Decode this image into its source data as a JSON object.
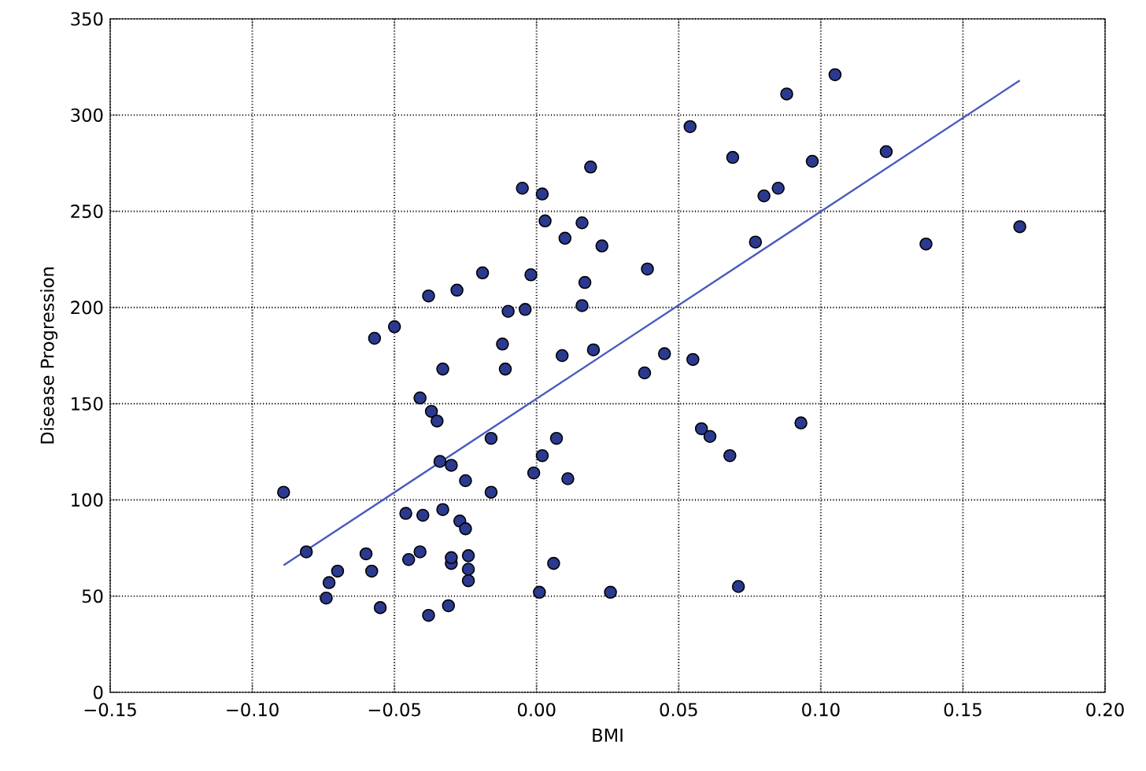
{
  "chart_data": {
    "type": "scatter",
    "xlabel": "BMI",
    "ylabel": "Disease Progression",
    "xlim": [
      -0.15,
      0.2
    ],
    "ylim": [
      0,
      350
    ],
    "xticks": [
      {
        "value": -0.15,
        "label": "−0.15"
      },
      {
        "value": -0.1,
        "label": "−0.10"
      },
      {
        "value": -0.05,
        "label": "−0.05"
      },
      {
        "value": 0,
        "label": "0.00"
      },
      {
        "value": 0.05,
        "label": "0.05"
      },
      {
        "value": 0.1,
        "label": "0.10"
      },
      {
        "value": 0.15,
        "label": "0.15"
      },
      {
        "value": 0.2,
        "label": "0.20"
      }
    ],
    "yticks": [
      0,
      50,
      100,
      150,
      200,
      250,
      300,
      350
    ],
    "grid": true,
    "series": [
      {
        "marker": "circle",
        "color": "#2b3a8f",
        "x": [
          -0.089,
          -0.081,
          -0.074,
          -0.073,
          -0.07,
          -0.06,
          -0.058,
          -0.057,
          -0.055,
          -0.05,
          -0.045,
          -0.046,
          -0.041,
          -0.04,
          -0.041,
          -0.038,
          -0.038,
          -0.037,
          -0.035,
          -0.033,
          -0.034,
          -0.033,
          -0.031,
          -0.03,
          -0.03,
          -0.03,
          -0.028,
          -0.027,
          -0.025,
          -0.025,
          -0.024,
          -0.024,
          -0.024,
          -0.019,
          -0.016,
          -0.016,
          -0.012,
          -0.011,
          -0.01,
          -0.004,
          -0.005,
          -0.002,
          -0.001,
          0.002,
          0.001,
          0.003,
          0.002,
          0.006,
          0.007,
          0.009,
          0.01,
          0.011,
          0.016,
          0.016,
          0.017,
          0.019,
          0.02,
          0.023,
          0.026,
          0.038,
          0.039,
          0.045,
          0.054,
          0.055,
          0.058,
          0.061,
          0.068,
          0.069,
          0.071,
          0.077,
          0.08,
          0.085,
          0.088,
          0.093,
          0.097,
          0.105,
          0.123,
          0.137,
          0.17
        ],
        "values": [
          104,
          73,
          49,
          57,
          63,
          72,
          63,
          184,
          44,
          190,
          69,
          93,
          73,
          92,
          153,
          206,
          40,
          146,
          141,
          168,
          120,
          95,
          45,
          67,
          70,
          118,
          209,
          89,
          85,
          110,
          71,
          64,
          58,
          218,
          132,
          104,
          181,
          168,
          198,
          199,
          262,
          217,
          114,
          259,
          52,
          245,
          123,
          67,
          132,
          175,
          236,
          111,
          244,
          201,
          213,
          273,
          178,
          232,
          52,
          166,
          220,
          176,
          294,
          173,
          137,
          133,
          123,
          278,
          55,
          234,
          258,
          262,
          311,
          140,
          276,
          321,
          281,
          233,
          242
        ]
      },
      {
        "type": "line",
        "marker": "none",
        "color": "#4a5bbf",
        "x": [
          -0.089,
          0.17
        ],
        "values": [
          66,
          318
        ]
      }
    ]
  }
}
